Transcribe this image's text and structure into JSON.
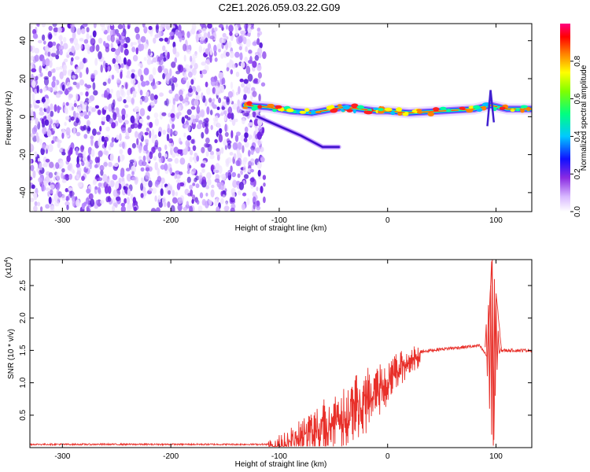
{
  "title": "C2E1.2026.059.03.22.G09",
  "chart_data": [
    {
      "type": "heatmap",
      "xlabel": "Height of straight line (km)",
      "ylabel": "Frequency (Hz)",
      "xlim": [
        -330,
        133
      ],
      "ylim": [
        -50,
        49
      ],
      "x_ticks": [
        -300,
        -200,
        -100,
        0,
        100
      ],
      "y_ticks": [
        -40,
        -20,
        0,
        20,
        40
      ],
      "colorbar": {
        "label": "Normalized spectral amplitude",
        "range": [
          0,
          1
        ],
        "ticks": [
          0.0,
          0.2,
          0.4,
          0.6,
          0.8
        ]
      },
      "noise_region_x": [
        -330,
        -118
      ],
      "signal_track": [
        {
          "x": -132,
          "y": 6
        },
        {
          "x": -110,
          "y": 5
        },
        {
          "x": -90,
          "y": 3
        },
        {
          "x": -70,
          "y": 2
        },
        {
          "x": -50,
          "y": 4
        },
        {
          "x": -40,
          "y": 5
        },
        {
          "x": -25,
          "y": 4
        },
        {
          "x": -10,
          "y": 3
        },
        {
          "x": 0,
          "y": 3
        },
        {
          "x": 20,
          "y": 2
        },
        {
          "x": 50,
          "y": 3
        },
        {
          "x": 80,
          "y": 4
        },
        {
          "x": 95,
          "y": 6
        },
        {
          "x": 110,
          "y": 4
        },
        {
          "x": 133,
          "y": 4
        }
      ],
      "secondary_track": [
        {
          "x": -120,
          "y": 0
        },
        {
          "x": -100,
          "y": -5
        },
        {
          "x": -80,
          "y": -10
        },
        {
          "x": -60,
          "y": -16
        },
        {
          "x": -45,
          "y": -16
        }
      ]
    },
    {
      "type": "line",
      "xlabel": "Height of straight line (km)",
      "ylabel": "SNR (10 * v/v)",
      "y_multiplier": "(x10",
      "y_multiplier_exp": "4",
      "y_multiplier_close": ")",
      "xlim": [
        -330,
        133
      ],
      "ylim": [
        0,
        2.9
      ],
      "x_ticks": [
        -300,
        -200,
        -100,
        0,
        100
      ],
      "y_ticks": [
        0.5,
        1.0,
        1.5,
        2.0,
        2.5
      ],
      "y_tick_labels": [
        "0.5",
        "1.0",
        "1.5",
        "2.0",
        "2.5"
      ],
      "color": "#e8302a",
      "x": [
        -330,
        -110,
        -100,
        -80,
        -60,
        -40,
        -20,
        0,
        10,
        20,
        30,
        50,
        70,
        85,
        92,
        96,
        98,
        100,
        105,
        115,
        133
      ],
      "y": [
        0.05,
        0.05,
        0.08,
        0.25,
        0.45,
        0.65,
        0.9,
        1.15,
        1.3,
        1.42,
        1.48,
        1.52,
        1.55,
        1.57,
        1.4,
        2.9,
        0.05,
        2.4,
        1.5,
        1.5,
        1.5
      ]
    }
  ]
}
